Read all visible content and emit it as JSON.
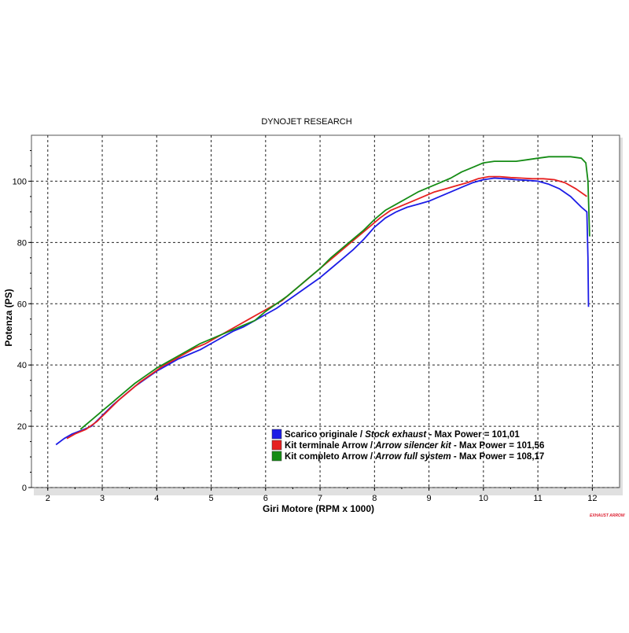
{
  "chart_data": {
    "type": "line",
    "title": "DYNOJET RESEARCH",
    "xlabel": "Giri Motore (RPM x 1000)",
    "ylabel": "Potenza (PS)",
    "xlim": [
      1.7,
      12.5
    ],
    "ylim": [
      0,
      115
    ],
    "x_ticks": [
      "2",
      "3",
      "4",
      "5",
      "6",
      "7",
      "8",
      "9",
      "10",
      "11",
      "12"
    ],
    "y_ticks": [
      "0",
      "20",
      "40",
      "60",
      "80",
      "100"
    ],
    "grid": true,
    "legend_position": "lower-right",
    "series": [
      {
        "name": "Scarico originale / Stock exhaust",
        "legend_plain_1": "Scarico originale / ",
        "legend_italic": "Stock exhaust",
        "legend_plain_2": " - Max Power = 101,01",
        "color": "#1c1ce6",
        "points": [
          [
            2.15,
            14
          ],
          [
            2.3,
            16
          ],
          [
            2.45,
            17.5
          ],
          [
            2.6,
            18.5
          ],
          [
            2.8,
            20
          ],
          [
            3.0,
            23.5
          ],
          [
            3.2,
            27
          ],
          [
            3.4,
            30
          ],
          [
            3.6,
            33
          ],
          [
            3.8,
            35.5
          ],
          [
            4.0,
            38
          ],
          [
            4.2,
            40
          ],
          [
            4.4,
            42
          ],
          [
            4.6,
            43.5
          ],
          [
            4.8,
            45
          ],
          [
            5.0,
            47
          ],
          [
            5.2,
            49
          ],
          [
            5.4,
            51
          ],
          [
            5.6,
            52.5
          ],
          [
            5.8,
            54.5
          ],
          [
            6.0,
            56.5
          ],
          [
            6.2,
            58.5
          ],
          [
            6.4,
            61
          ],
          [
            6.6,
            63.5
          ],
          [
            6.8,
            66
          ],
          [
            7.0,
            68.5
          ],
          [
            7.2,
            71.5
          ],
          [
            7.4,
            74.5
          ],
          [
            7.6,
            77.5
          ],
          [
            7.8,
            81
          ],
          [
            8.0,
            85
          ],
          [
            8.2,
            88
          ],
          [
            8.4,
            90
          ],
          [
            8.6,
            91.5
          ],
          [
            8.8,
            92.5
          ],
          [
            9.0,
            93.5
          ],
          [
            9.2,
            95
          ],
          [
            9.4,
            96.5
          ],
          [
            9.6,
            98
          ],
          [
            9.8,
            99.5
          ],
          [
            10.0,
            100.5
          ],
          [
            10.2,
            101
          ],
          [
            10.4,
            100.8
          ],
          [
            10.6,
            100.5
          ],
          [
            10.8,
            100.3
          ],
          [
            11.0,
            100
          ],
          [
            11.2,
            99
          ],
          [
            11.4,
            97.5
          ],
          [
            11.6,
            95
          ],
          [
            11.8,
            91.5
          ],
          [
            11.9,
            90
          ],
          [
            11.92,
            75
          ],
          [
            11.93,
            59
          ]
        ]
      },
      {
        "name": "Kit terminale Arrow / Arrow silencer kit",
        "legend_plain_1": "Kit terminale Arrow / ",
        "legend_italic": "Arrow silencer kit",
        "legend_plain_2": " - Max Power = 101,56",
        "color": "#e62020",
        "points": [
          [
            2.35,
            16
          ],
          [
            2.5,
            17.5
          ],
          [
            2.7,
            19
          ],
          [
            2.9,
            21.5
          ],
          [
            3.1,
            25
          ],
          [
            3.3,
            28.5
          ],
          [
            3.5,
            31.5
          ],
          [
            3.7,
            34.5
          ],
          [
            3.9,
            37
          ],
          [
            4.1,
            39.5
          ],
          [
            4.3,
            41.5
          ],
          [
            4.5,
            43.5
          ],
          [
            4.7,
            45.5
          ],
          [
            4.9,
            47
          ],
          [
            5.1,
            49
          ],
          [
            5.3,
            51
          ],
          [
            5.5,
            53
          ],
          [
            5.7,
            55
          ],
          [
            5.9,
            57
          ],
          [
            6.1,
            59
          ],
          [
            6.3,
            61
          ],
          [
            6.5,
            64
          ],
          [
            6.7,
            67
          ],
          [
            6.9,
            70
          ],
          [
            7.1,
            73
          ],
          [
            7.3,
            76
          ],
          [
            7.5,
            79
          ],
          [
            7.7,
            82
          ],
          [
            7.9,
            85
          ],
          [
            8.1,
            88
          ],
          [
            8.3,
            90.5
          ],
          [
            8.5,
            92
          ],
          [
            8.7,
            93.5
          ],
          [
            8.9,
            95
          ],
          [
            9.1,
            96.5
          ],
          [
            9.3,
            97.5
          ],
          [
            9.5,
            98.5
          ],
          [
            9.7,
            99.5
          ],
          [
            9.9,
            100.8
          ],
          [
            10.1,
            101.5
          ],
          [
            10.3,
            101.5
          ],
          [
            10.5,
            101.2
          ],
          [
            10.7,
            101
          ],
          [
            10.9,
            100.8
          ],
          [
            11.1,
            100.8
          ],
          [
            11.3,
            100.5
          ],
          [
            11.5,
            99.5
          ],
          [
            11.7,
            97.5
          ],
          [
            11.9,
            95
          ]
        ]
      },
      {
        "name": "Kit completo Arrow / Arrow full system",
        "legend_plain_1": "Kit completo Arrow / ",
        "legend_italic": "Arrow full system",
        "legend_plain_2": " - Max Power = 108,17",
        "color": "#158c15",
        "points": [
          [
            2.6,
            19
          ],
          [
            2.8,
            22
          ],
          [
            3.0,
            25
          ],
          [
            3.2,
            28
          ],
          [
            3.4,
            31
          ],
          [
            3.6,
            34
          ],
          [
            3.8,
            36.5
          ],
          [
            4.0,
            39
          ],
          [
            4.2,
            41
          ],
          [
            4.4,
            43
          ],
          [
            4.6,
            45
          ],
          [
            4.8,
            47
          ],
          [
            5.0,
            48.5
          ],
          [
            5.2,
            50
          ],
          [
            5.4,
            51.5
          ],
          [
            5.6,
            53
          ],
          [
            5.8,
            54.5
          ],
          [
            6.0,
            57.5
          ],
          [
            6.2,
            60
          ],
          [
            6.4,
            62.5
          ],
          [
            6.6,
            65.5
          ],
          [
            6.8,
            68.5
          ],
          [
            7.0,
            71.5
          ],
          [
            7.2,
            75
          ],
          [
            7.4,
            78
          ],
          [
            7.6,
            81
          ],
          [
            7.8,
            84
          ],
          [
            8.0,
            87.5
          ],
          [
            8.2,
            90.5
          ],
          [
            8.4,
            92.5
          ],
          [
            8.6,
            94.5
          ],
          [
            8.8,
            96.5
          ],
          [
            9.0,
            98
          ],
          [
            9.2,
            99.5
          ],
          [
            9.4,
            101
          ],
          [
            9.6,
            103
          ],
          [
            9.8,
            104.5
          ],
          [
            10.0,
            106
          ],
          [
            10.2,
            106.5
          ],
          [
            10.4,
            106.5
          ],
          [
            10.6,
            106.5
          ],
          [
            10.8,
            107
          ],
          [
            11.0,
            107.5
          ],
          [
            11.2,
            108
          ],
          [
            11.4,
            108
          ],
          [
            11.6,
            108
          ],
          [
            11.8,
            107.5
          ],
          [
            11.88,
            106
          ],
          [
            11.92,
            100
          ],
          [
            11.95,
            82
          ]
        ]
      }
    ]
  },
  "watermark": "EXHAUST ARROW"
}
